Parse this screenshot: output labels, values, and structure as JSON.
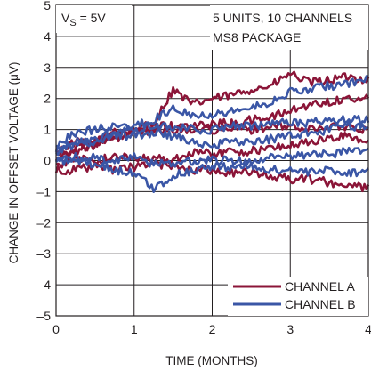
{
  "chart_data": {
    "type": "line",
    "xlabel": "TIME (MONTHS)",
    "ylabel": "CHANGE IN OFFSET VOLTAGE (μV)",
    "xlim": [
      0,
      4
    ],
    "ylim": [
      -5,
      5
    ],
    "x_ticks": [
      "0",
      "1",
      "2",
      "3",
      "4"
    ],
    "y_ticks": [
      "5",
      "4",
      "3",
      "2",
      "1",
      "0",
      "–1",
      "–2",
      "–3",
      "–4",
      "–5"
    ],
    "grid": true,
    "legend_position": "bottom-right",
    "annotations": {
      "supply_main": "V",
      "supply_sub": "S",
      "supply_rest": " = 5V",
      "units_line1": "5 UNITS, 10 CHANNELS",
      "units_line2": "MS8 PACKAGE"
    },
    "series": [
      {
        "name": "CHANNEL A",
        "color": "#8b1538"
      },
      {
        "name": "CHANNEL B",
        "color": "#3a56a6"
      }
    ],
    "traces": [
      {
        "group": "CHANNEL A",
        "x": [
          0,
          0.25,
          0.5,
          0.75,
          1.0,
          1.25,
          1.5,
          1.75,
          2.0,
          2.25,
          2.5,
          2.75,
          3.0,
          3.25,
          3.5,
          3.75,
          4.0
        ],
        "y": [
          0.3,
          0.6,
          0.5,
          1.0,
          1.0,
          1.2,
          2.3,
          1.8,
          2.0,
          2.1,
          2.3,
          2.4,
          2.8,
          2.5,
          2.6,
          2.7,
          2.6
        ]
      },
      {
        "group": "CHANNEL A",
        "x": [
          0,
          0.25,
          0.5,
          0.75,
          1.0,
          1.25,
          1.5,
          1.75,
          2.0,
          2.25,
          2.5,
          2.75,
          3.0,
          3.25,
          3.5,
          3.75,
          4.0
        ],
        "y": [
          0.1,
          0.4,
          0.5,
          0.7,
          0.9,
          1.1,
          1.1,
          1.1,
          1.2,
          1.2,
          1.3,
          1.4,
          1.6,
          1.8,
          1.9,
          2.0,
          2.0
        ]
      },
      {
        "group": "CHANNEL A",
        "x": [
          0,
          0.25,
          0.5,
          0.75,
          1.0,
          1.25,
          1.5,
          1.75,
          2.0,
          2.25,
          2.5,
          2.75,
          3.0,
          3.25,
          3.5,
          3.75,
          4.0
        ],
        "y": [
          0.2,
          0.3,
          0.6,
          0.8,
          0.9,
          1.0,
          1.0,
          1.0,
          1.0,
          1.0,
          1.0,
          1.1,
          1.1,
          1.0,
          1.1,
          1.1,
          1.0
        ]
      },
      {
        "group": "CHANNEL A",
        "x": [
          0,
          0.25,
          0.5,
          0.75,
          1.0,
          1.25,
          1.5,
          1.75,
          2.0,
          2.25,
          2.5,
          2.75,
          3.0,
          3.25,
          3.5,
          3.75,
          4.0
        ],
        "y": [
          -0.2,
          0.1,
          0.0,
          0.1,
          0.1,
          0.1,
          0.0,
          0.3,
          0.2,
          0.3,
          0.3,
          0.4,
          0.5,
          0.6,
          0.7,
          0.8,
          0.6
        ]
      },
      {
        "group": "CHANNEL A",
        "x": [
          0,
          0.25,
          0.5,
          0.75,
          1.0,
          1.25,
          1.5,
          1.75,
          2.0,
          2.25,
          2.5,
          2.75,
          3.0,
          3.25,
          3.5,
          3.75,
          4.0
        ],
        "y": [
          -0.3,
          -0.3,
          -0.2,
          -0.3,
          -0.2,
          -0.1,
          -0.2,
          -0.3,
          -0.3,
          -0.4,
          -0.4,
          -0.5,
          -0.6,
          -0.6,
          -0.7,
          -0.8,
          -0.9
        ]
      },
      {
        "group": "CHANNEL B",
        "x": [
          0,
          0.25,
          0.5,
          0.75,
          1.0,
          1.25,
          1.5,
          1.75,
          2.0,
          2.25,
          2.5,
          2.75,
          3.0,
          3.25,
          3.5,
          3.75,
          4.0
        ],
        "y": [
          0.5,
          0.9,
          1.0,
          1.1,
          1.1,
          1.3,
          1.7,
          1.5,
          1.5,
          1.6,
          1.7,
          1.9,
          2.2,
          2.3,
          2.4,
          2.5,
          2.6
        ]
      },
      {
        "group": "CHANNEL B",
        "x": [
          0,
          0.25,
          0.5,
          0.75,
          1.0,
          1.25,
          1.5,
          1.75,
          2.0,
          2.25,
          2.5,
          2.75,
          3.0,
          3.25,
          3.5,
          3.75,
          4.0
        ],
        "y": [
          0.2,
          0.5,
          0.7,
          0.9,
          1.0,
          1.1,
          1.1,
          1.0,
          1.0,
          1.1,
          1.1,
          1.2,
          1.2,
          1.2,
          1.3,
          1.3,
          1.3
        ]
      },
      {
        "group": "CHANNEL B",
        "x": [
          0,
          0.25,
          0.5,
          0.75,
          1.0,
          1.25,
          1.5,
          1.75,
          2.0,
          2.25,
          2.5,
          2.75,
          3.0,
          3.25,
          3.5,
          3.75,
          4.0
        ],
        "y": [
          0.4,
          0.6,
          0.6,
          0.8,
          0.8,
          0.9,
          0.8,
          0.6,
          0.5,
          0.6,
          0.6,
          0.7,
          0.8,
          0.9,
          1.0,
          1.1,
          1.1
        ]
      },
      {
        "group": "CHANNEL B",
        "x": [
          0,
          0.25,
          0.5,
          0.75,
          1.0,
          1.25,
          1.5,
          1.75,
          2.0,
          2.25,
          2.5,
          2.75,
          3.0,
          3.25,
          3.5,
          3.75,
          4.0
        ],
        "y": [
          0.0,
          0.1,
          0.1,
          0.0,
          0.1,
          -0.1,
          -0.1,
          0.0,
          0.0,
          0.0,
          0.0,
          0.1,
          0.1,
          0.2,
          0.2,
          0.3,
          0.3
        ]
      },
      {
        "group": "CHANNEL B",
        "x": [
          0,
          0.25,
          0.5,
          0.75,
          1.0,
          1.25,
          1.5,
          1.75,
          2.0,
          2.25,
          2.5,
          2.75,
          3.0,
          3.25,
          3.5,
          3.75,
          4.0
        ],
        "y": [
          -0.1,
          0.0,
          -0.1,
          -0.3,
          -0.4,
          -0.9,
          -0.5,
          -0.3,
          -0.2,
          -0.2,
          -0.2,
          -0.3,
          -0.3,
          -0.4,
          -0.3,
          -0.4,
          -0.3
        ]
      }
    ]
  }
}
